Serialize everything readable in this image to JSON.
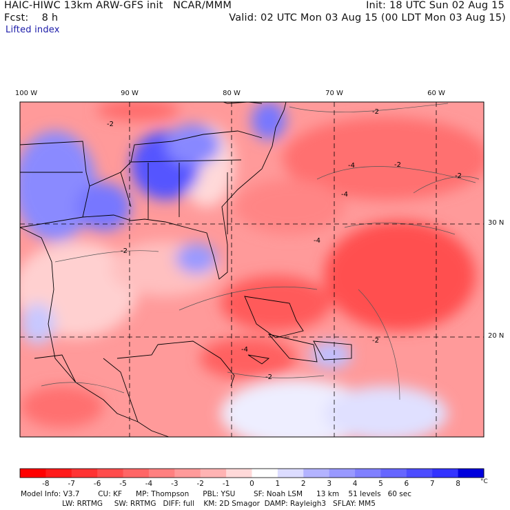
{
  "header": {
    "model_title": "HAIC-HIWC 13km ARW-GFS init   NCAR/MMM",
    "forecast": "Fcst:    8 h",
    "field": "Lifted index",
    "init_time": "Init: 18 UTC Sun 02 Aug 15",
    "valid_time": "Valid: 02 UTC Mon 03 Aug 15 (00 LDT Mon 03 Aug 15)"
  },
  "map": {
    "longitude_labels": [
      {
        "lon": -100,
        "label": "100 W"
      },
      {
        "lon": -90,
        "label": "90 W"
      },
      {
        "lon": -80,
        "label": "80 W"
      },
      {
        "lon": -70,
        "label": "70 W"
      },
      {
        "lon": -60,
        "label": "60 W"
      }
    ],
    "latitude_labels": [
      {
        "lat": 30,
        "label": "30 N"
      },
      {
        "lat": 20,
        "label": "20 N"
      }
    ],
    "contour_labels": [
      "-2",
      "-4",
      "-2",
      "-2",
      "-4",
      "-4",
      "-2",
      "-2",
      "-2",
      "-4",
      "-2"
    ]
  },
  "colorbar": {
    "unit": "°C",
    "ticks": [
      "-8",
      "-7",
      "-6",
      "-5",
      "-4",
      "-3",
      "-2",
      "-1",
      "0",
      "1",
      "2",
      "3",
      "4",
      "5",
      "6",
      "7",
      "8"
    ],
    "colors": [
      "#ff0000",
      "#ff1a1a",
      "#ff3333",
      "#ff4d4d",
      "#ff6666",
      "#ff8080",
      "#ff9a9a",
      "#ffb3b3",
      "#ffd9d9",
      "#ffffff",
      "#dcdcff",
      "#b3b3ff",
      "#9999ff",
      "#8080ff",
      "#6666ff",
      "#4d4dff",
      "#3333ff",
      "#0000dd"
    ]
  },
  "footer": {
    "line1": "Model Info: V3.7        CU: KF      MP: Thompson      PBL: YSU        SF: Noah LSM      13 km    51 levels   60 sec",
    "line2": "                  LW: RRTMG     SW: RRTMG   DIFF: full    KM: 2D Smagor  DAMP: Rayleigh3   SFLAY: MM5"
  }
}
